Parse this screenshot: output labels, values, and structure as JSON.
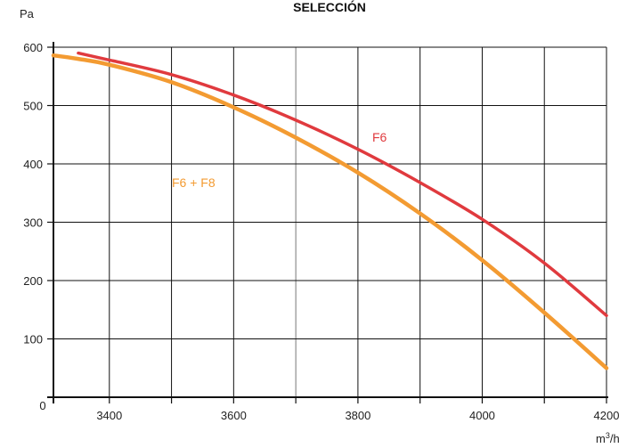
{
  "chart_data": {
    "type": "line",
    "title": "SELECCIÓN",
    "ylabel": "Pa",
    "xlabel": "m³/h",
    "xlabel_base": "m",
    "xlabel_sup": "3",
    "xlabel_tail": "/h",
    "origin_label": "0",
    "xlim": [
      3310,
      4200
    ],
    "ylim": [
      0,
      600
    ],
    "x_ticks": [
      3400,
      3600,
      3800,
      4000,
      4200
    ],
    "y_ticks": [
      100,
      200,
      300,
      400,
      500,
      600
    ],
    "grid": true,
    "series": [
      {
        "name": "F6",
        "color": "#e03a3e",
        "x": [
          3350,
          3400,
          3500,
          3600,
          3700,
          3800,
          3900,
          4000,
          4100,
          4200
        ],
        "y": [
          590,
          578,
          553,
          518,
          475,
          425,
          368,
          305,
          230,
          140
        ]
      },
      {
        "name": "F6 + F8",
        "color": "#f39b32",
        "x": [
          3310,
          3350,
          3400,
          3500,
          3600,
          3700,
          3800,
          3900,
          4000,
          4100,
          4200
        ],
        "y": [
          586,
          580,
          570,
          540,
          497,
          445,
          385,
          315,
          235,
          145,
          50
        ]
      }
    ]
  }
}
